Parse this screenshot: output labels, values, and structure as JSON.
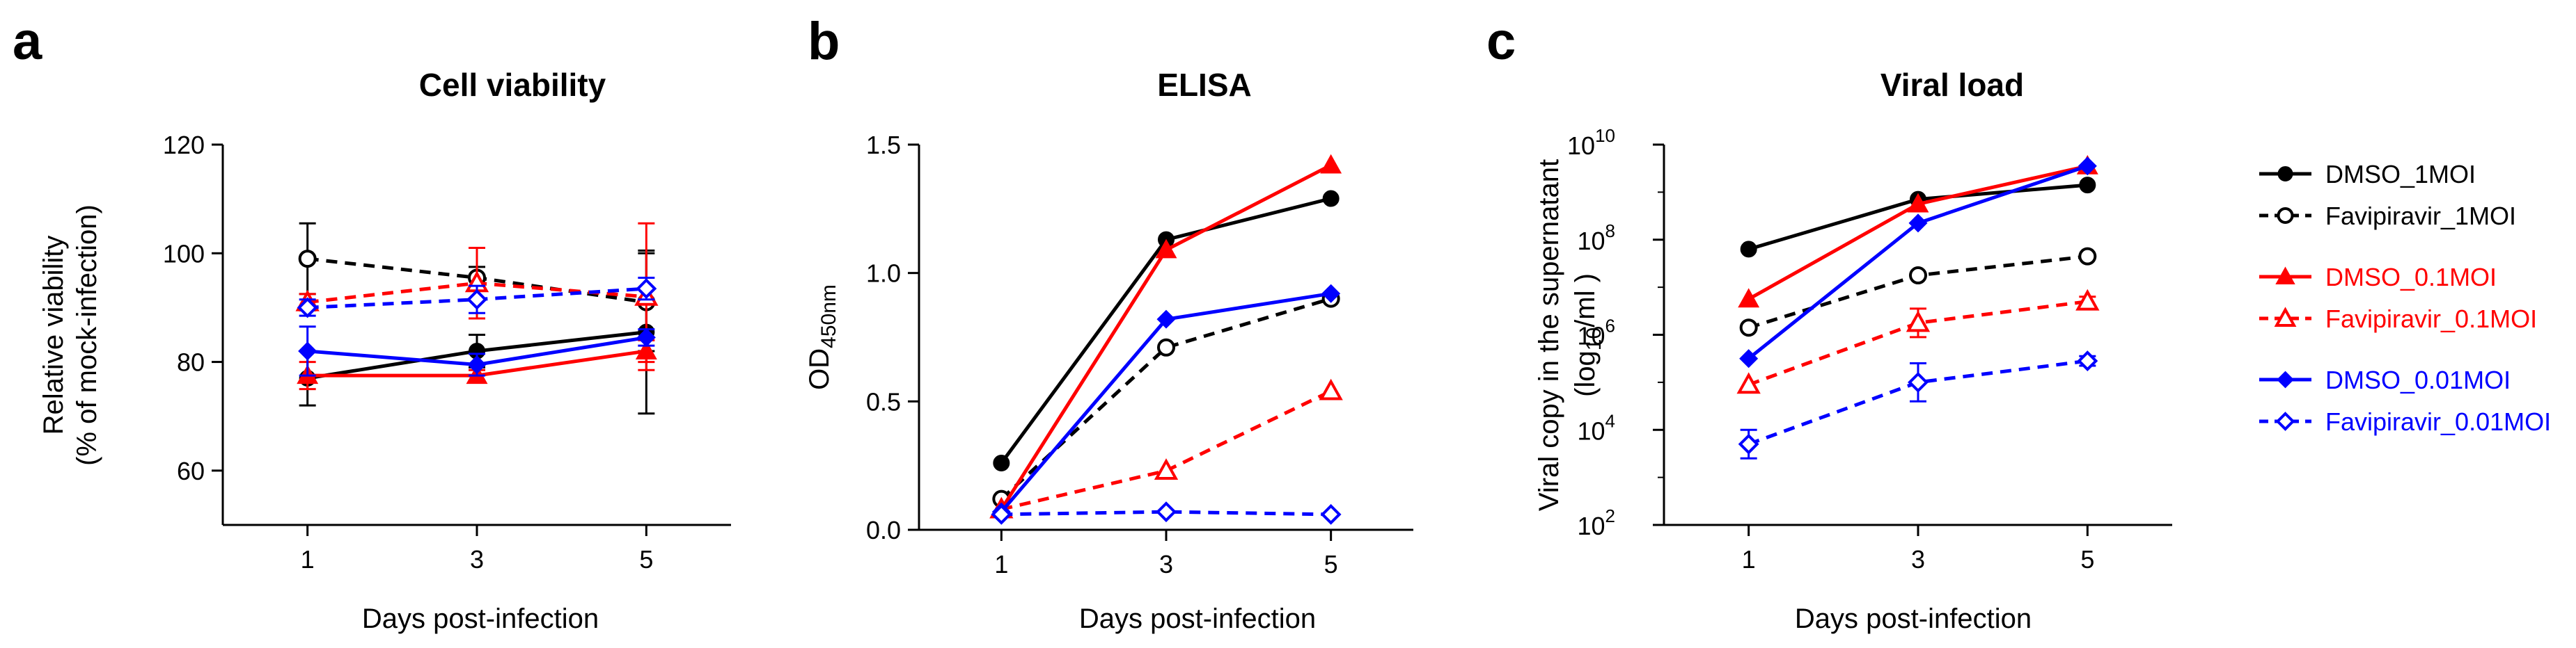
{
  "figure": {
    "panels": [
      "a",
      "b",
      "c"
    ]
  },
  "chart_data": [
    {
      "panel": "a",
      "type": "line",
      "title": "Cell viability",
      "xlabel": "Days post-infection",
      "ylabel_lines": [
        "Relative viability",
        "(% of mock-infection)"
      ],
      "ylim": [
        50,
        120
      ],
      "yticks": [
        60,
        80,
        100,
        120
      ],
      "xlim": [
        0,
        6
      ],
      "xticks": [
        1,
        3,
        5
      ],
      "yscale": "linear",
      "series": [
        {
          "name": "DMSO_1MOI",
          "color": "#000000",
          "dash": false,
          "marker": "circle",
          "filled": true,
          "x": [
            1,
            3,
            5
          ],
          "y": [
            77,
            82,
            85.5
          ],
          "err": [
            5,
            3,
            15
          ]
        },
        {
          "name": "Favipiravir_1MOI",
          "color": "#000000",
          "dash": true,
          "marker": "circle",
          "filled": false,
          "x": [
            1,
            3,
            5
          ],
          "y": [
            99,
            95.5,
            91
          ],
          "err": [
            6.5,
            2,
            9
          ]
        },
        {
          "name": "DMSO_0.1MOI",
          "color": "#ff0000",
          "dash": false,
          "marker": "triangle",
          "filled": true,
          "x": [
            1,
            3,
            5
          ],
          "y": [
            77.5,
            77.5,
            82
          ],
          "err": [
            2.5,
            1,
            2
          ]
        },
        {
          "name": "Favipiravir_0.1MOI",
          "color": "#ff0000",
          "dash": true,
          "marker": "triangle",
          "filled": false,
          "x": [
            1,
            3,
            5
          ],
          "y": [
            91,
            94.5,
            92
          ],
          "err": [
            1.5,
            6.5,
            13.5
          ]
        },
        {
          "name": "DMSO_0.01MOI",
          "color": "#0000ff",
          "dash": false,
          "marker": "diamond",
          "filled": true,
          "x": [
            1,
            3,
            5
          ],
          "y": [
            82,
            79.5,
            84.5
          ],
          "err": [
            4.5,
            2,
            1.5
          ]
        },
        {
          "name": "Favipiravir_0.01MOI",
          "color": "#0000ff",
          "dash": true,
          "marker": "diamond",
          "filled": false,
          "x": [
            1,
            3,
            5
          ],
          "y": [
            90,
            91.5,
            93.5
          ],
          "err": [
            1.5,
            2.5,
            2
          ]
        }
      ]
    },
    {
      "panel": "b",
      "type": "line",
      "title": "ELISA",
      "xlabel": "Days post-infection",
      "ylabel_main": "OD",
      "ylabel_sub": "450nm",
      "ylim": [
        0,
        1.5
      ],
      "yticks": [
        0.0,
        0.5,
        1.0,
        1.5
      ],
      "ytick_labels": [
        "0.0",
        "0.5",
        "1.0",
        "1.5"
      ],
      "xlim": [
        0,
        6
      ],
      "xticks": [
        1,
        3,
        5
      ],
      "yscale": "linear",
      "series": [
        {
          "name": "DMSO_1MOI",
          "color": "#000000",
          "dash": false,
          "marker": "circle",
          "filled": true,
          "x": [
            1,
            3,
            5
          ],
          "y": [
            0.26,
            1.13,
            1.29
          ]
        },
        {
          "name": "Favipiravir_1MOI",
          "color": "#000000",
          "dash": true,
          "marker": "circle",
          "filled": false,
          "x": [
            1,
            3,
            5
          ],
          "y": [
            0.12,
            0.71,
            0.9
          ]
        },
        {
          "name": "DMSO_0.1MOI",
          "color": "#ff0000",
          "dash": false,
          "marker": "triangle",
          "filled": true,
          "x": [
            1,
            3,
            5
          ],
          "y": [
            0.08,
            1.09,
            1.42
          ]
        },
        {
          "name": "Favipiravir_0.1MOI",
          "color": "#ff0000",
          "dash": true,
          "marker": "triangle",
          "filled": false,
          "x": [
            1,
            3,
            5
          ],
          "y": [
            0.08,
            0.23,
            0.54
          ]
        },
        {
          "name": "DMSO_0.01MOI",
          "color": "#0000ff",
          "dash": false,
          "marker": "diamond",
          "filled": true,
          "x": [
            1,
            3,
            5
          ],
          "y": [
            0.07,
            0.82,
            0.92
          ]
        },
        {
          "name": "Favipiravir_0.01MOI",
          "color": "#0000ff",
          "dash": true,
          "marker": "diamond",
          "filled": false,
          "x": [
            1,
            3,
            5
          ],
          "y": [
            0.06,
            0.07,
            0.06
          ]
        }
      ]
    },
    {
      "panel": "c",
      "type": "line",
      "title": "Viral load",
      "xlabel": "Days post-infection",
      "ylabel_line1": "Viral copy in the supernatant",
      "ylabel_line2_pre": "(log",
      "ylabel_line2_sub": "10",
      "ylabel_line2_post": "/ml )",
      "yscale": "log",
      "ylim_exp": [
        2,
        10
      ],
      "yticks_exp": [
        2,
        4,
        6,
        8,
        10
      ],
      "ytick_base": "10",
      "ytick_exps": [
        "2",
        "4",
        "6",
        "8",
        "10"
      ],
      "xlim": [
        0,
        6
      ],
      "xticks": [
        1,
        3,
        5
      ],
      "series": [
        {
          "name": "DMSO_1MOI",
          "color": "#000000",
          "dash": false,
          "marker": "circle",
          "filled": true,
          "x": [
            1,
            3,
            5
          ],
          "log10_y": [
            7.8,
            8.85,
            9.15
          ]
        },
        {
          "name": "Favipiravir_1MOI",
          "color": "#000000",
          "dash": true,
          "marker": "circle",
          "filled": false,
          "x": [
            1,
            3,
            5
          ],
          "log10_y": [
            6.15,
            7.25,
            7.65
          ]
        },
        {
          "name": "DMSO_0.1MOI",
          "color": "#ff0000",
          "dash": false,
          "marker": "triangle",
          "filled": true,
          "x": [
            1,
            3,
            5
          ],
          "log10_y": [
            6.75,
            8.75,
            9.55
          ]
        },
        {
          "name": "Favipiravir_0.1MOI",
          "color": "#ff0000",
          "dash": true,
          "marker": "triangle",
          "filled": false,
          "x": [
            1,
            3,
            5
          ],
          "log10_y": [
            4.95,
            6.25,
            6.7
          ],
          "log10_err": [
            0,
            0.3,
            0.1
          ]
        },
        {
          "name": "DMSO_0.01MOI",
          "color": "#0000ff",
          "dash": false,
          "marker": "diamond",
          "filled": true,
          "x": [
            1,
            3,
            5
          ],
          "log10_y": [
            5.5,
            8.35,
            9.55
          ]
        },
        {
          "name": "Favipiravir_0.01MOI",
          "color": "#0000ff",
          "dash": true,
          "marker": "diamond",
          "filled": false,
          "x": [
            1,
            3,
            5
          ],
          "log10_y": [
            3.7,
            5.0,
            5.45
          ],
          "log10_err": [
            0.3,
            0.4,
            0.1
          ]
        }
      ]
    }
  ],
  "legend": {
    "placement": "right",
    "groups": [
      [
        {
          "label": "DMSO_1MOI",
          "color": "#000000",
          "dash": false,
          "marker": "circle",
          "filled": true
        },
        {
          "label": "Favipiravir_1MOI",
          "color": "#000000",
          "dash": true,
          "marker": "circle",
          "filled": false
        }
      ],
      [
        {
          "label": "DMSO_0.1MOI",
          "color": "#ff0000",
          "dash": false,
          "marker": "triangle",
          "filled": true
        },
        {
          "label": "Favipiravir_0.1MOI",
          "color": "#ff0000",
          "dash": true,
          "marker": "triangle",
          "filled": false
        }
      ],
      [
        {
          "label": "DMSO_0.01MOI",
          "color": "#0000ff",
          "dash": false,
          "marker": "diamond",
          "filled": true
        },
        {
          "label": "Favipiravir_0.01MOI",
          "color": "#0000ff",
          "dash": true,
          "marker": "diamond",
          "filled": false
        }
      ]
    ]
  }
}
